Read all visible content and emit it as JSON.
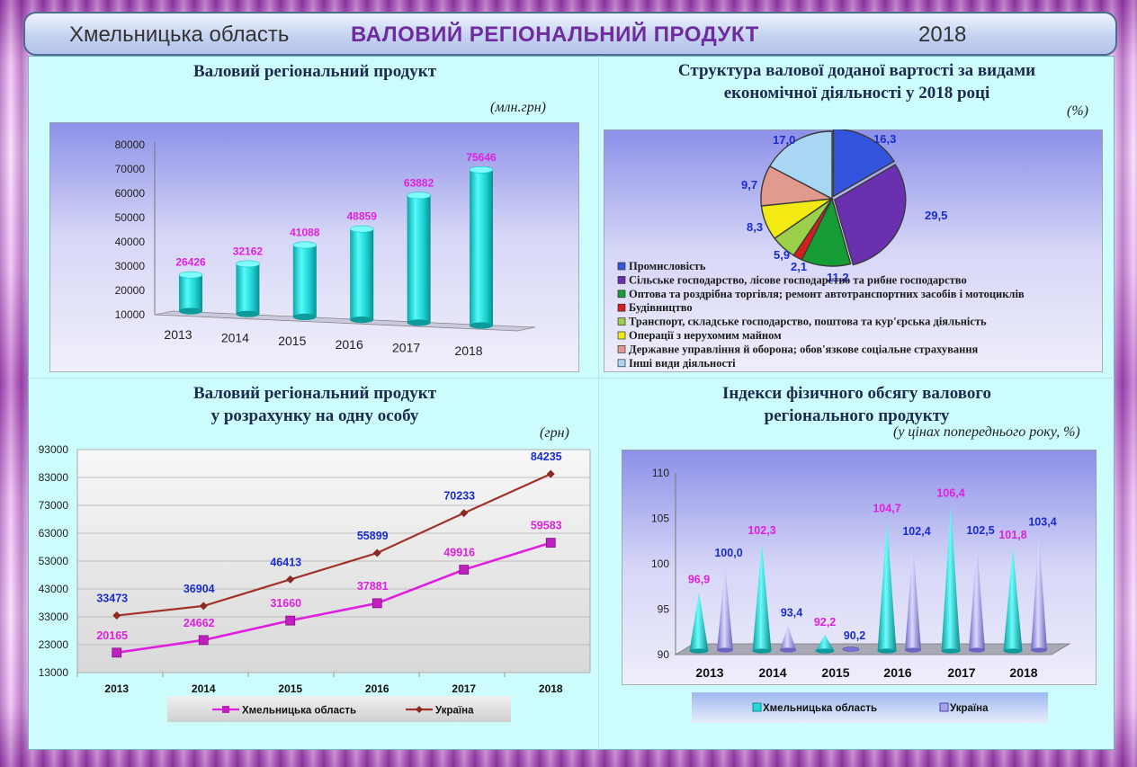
{
  "header": {
    "region": "Хмельницька область",
    "title": "ВАЛОВИЙ РЕГІОНАЛЬНИЙ ПРОДУКТ",
    "year": "2018"
  },
  "colors": {
    "panel": "#ccfcfc",
    "magenta": "#e020e0",
    "brown": "#a0322a",
    "cyan": "#29d6d6",
    "lavender": "#a7a3ec",
    "title_purple": "#6f2c9e"
  },
  "chart_data": [
    {
      "id": "grp",
      "type": "bar",
      "title": "Валовий регіональний продукт",
      "unit": "(млн.грн)",
      "categories": [
        "2013",
        "2014",
        "2015",
        "2016",
        "2017",
        "2018"
      ],
      "values": [
        26426,
        32162,
        41088,
        48859,
        63882,
        75646
      ],
      "yticks": [
        "10000",
        "20000",
        "30000",
        "40000",
        "50000",
        "60000",
        "70000",
        "80000"
      ],
      "ylim": [
        10000,
        80000
      ]
    },
    {
      "id": "structure",
      "type": "pie",
      "title_line1": "Структура валової доданої вартості за видами",
      "title_line2": "економічної діяльності у 2018 році",
      "unit": "(%)",
      "slices": [
        {
          "label": "Промисловість",
          "value": 16.3,
          "display": "16,3",
          "color": "#3355dd"
        },
        {
          "label": "Сільське господарство, лісове господарство та рибне господарство",
          "value": 29.5,
          "display": "29,5",
          "color": "#6a30b0"
        },
        {
          "label": "Оптова та роздрібна торгівля; ремонт автотранспортних засобів і мотоциклів",
          "value": 11.2,
          "display": "11,2",
          "color": "#169c35"
        },
        {
          "label": "Будівництво",
          "value": 2.1,
          "display": "2,1",
          "color": "#d81d1d"
        },
        {
          "label": "Транспорт, складське господарство, поштова та кур'єрська діяльність",
          "value": 5.9,
          "display": "5,9",
          "color": "#9cd04a"
        },
        {
          "label": "Операції з нерухомим майном",
          "value": 8.3,
          "display": "8,3",
          "color": "#f2ea12"
        },
        {
          "label": "Державне управління й оборона; обов'язкове соціальне страхування",
          "value": 9.7,
          "display": "9,7",
          "color": "#e39a8e"
        },
        {
          "label": "Інші види діяльності",
          "value": 17.0,
          "display": "17,0",
          "color": "#a9d6f2"
        }
      ]
    },
    {
      "id": "per_capita",
      "type": "line",
      "title_line1": "Валовий регіональний продукт",
      "title_line2": "у розрахунку на одну особу",
      "unit": "(грн)",
      "categories": [
        "2013",
        "2014",
        "2015",
        "2016",
        "2017",
        "2018"
      ],
      "series": [
        {
          "name": "Хмельницька область",
          "values": [
            20165,
            24662,
            31660,
            37881,
            49916,
            59583
          ],
          "color": "#e020e0",
          "label_color": "#e020e0"
        },
        {
          "name": "Україна",
          "values": [
            33473,
            36904,
            46413,
            55899,
            70233,
            84235
          ],
          "color": "#a0322a",
          "label_color": "#1a2ccf"
        }
      ],
      "yticks": [
        "13000",
        "23000",
        "33000",
        "43000",
        "53000",
        "63000",
        "73000",
        "83000",
        "93000"
      ],
      "ylim": [
        13000,
        93000
      ]
    },
    {
      "id": "indices",
      "type": "bar",
      "title_line1": "Індекси фізичного обсягу валового",
      "title_line2": "регіонального продукту",
      "unit": "(у цінах попереднього року, %)",
      "categories": [
        "2013",
        "2014",
        "2015",
        "2016",
        "2017",
        "2018"
      ],
      "series": [
        {
          "name": "Хмельницька область",
          "values": [
            96.9,
            102.3,
            92.2,
            104.7,
            106.4,
            101.8
          ],
          "labels": [
            "96,9",
            "102,3",
            "92,2",
            "104,7",
            "106,4",
            "101,8"
          ],
          "color": "#29d6d6",
          "label_color": "#e020e0"
        },
        {
          "name": "Україна",
          "values": [
            100.0,
            93.4,
            90.2,
            102.4,
            102.5,
            103.4
          ],
          "labels": [
            "100,0",
            "93,4",
            "90,2",
            "102,4",
            "102,5",
            "103,4"
          ],
          "color": "#a7a3ec",
          "label_color": "#1a2ccf"
        }
      ],
      "yticks": [
        "90",
        "95",
        "100",
        "105",
        "110"
      ],
      "ylim": [
        90,
        110
      ]
    }
  ]
}
